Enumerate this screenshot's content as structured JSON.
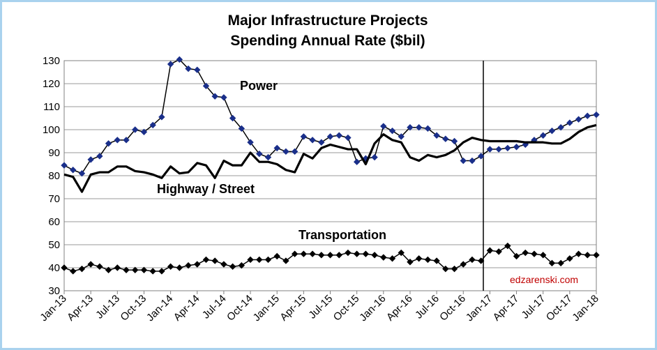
{
  "chart_data": {
    "type": "line",
    "title": "Major Infrastructure Projects",
    "subtitle": "Spending Annual Rate ($bil)",
    "categories": [
      "Jan-13",
      null,
      null,
      "Apr-13",
      null,
      null,
      "Jul-13",
      null,
      null,
      "Oct-13",
      null,
      null,
      "Jan-14",
      null,
      null,
      "Apr-14",
      null,
      null,
      "Jul-14",
      null,
      null,
      "Oct-14",
      null,
      null,
      "Jan-15",
      null,
      null,
      "Apr-15",
      null,
      null,
      "Jul-15",
      null,
      null,
      "Oct-15",
      null,
      null,
      "Jan-16",
      null,
      null,
      "Apr-16",
      null,
      null,
      "Jul-16",
      null,
      null,
      "Oct-16",
      null,
      null,
      "Jan-17",
      null,
      null,
      "Apr-17",
      null,
      null,
      "Jul-17",
      null,
      null,
      "Oct-17",
      null,
      null,
      "Jan-18"
    ],
    "series": [
      {
        "name": "Power",
        "color": "#1a2f8a",
        "line_color": "#000000",
        "line_width": 1.5,
        "marker": "diamond",
        "values": [
          84.5,
          82.5,
          81,
          87,
          88.5,
          94,
          95.5,
          95.5,
          100,
          99,
          102,
          105.5,
          128.5,
          130.5,
          126.5,
          126,
          119,
          114.5,
          114,
          105,
          100.5,
          94.5,
          89.5,
          88,
          92,
          90.5,
          90.5,
          97,
          95.5,
          94.5,
          97,
          97.5,
          96.5,
          86,
          87.5,
          88,
          101.5,
          99.5,
          97,
          101,
          101,
          100.5,
          97.5,
          96,
          95,
          86.5,
          86.5,
          88.5,
          91.5,
          91.5,
          92,
          92.5,
          93.5,
          95.5,
          97.5,
          99.5,
          101,
          103,
          104.5,
          106,
          106.5
        ]
      },
      {
        "name": "Highway / Street",
        "color": "#000000",
        "line_color": "#000000",
        "line_width": 3.2,
        "marker": null,
        "values": [
          80.5,
          79.5,
          73,
          80.5,
          81.5,
          81.5,
          84,
          84,
          82,
          81.5,
          80.5,
          79,
          84,
          81,
          81.5,
          85.5,
          84.5,
          79,
          86.5,
          84.5,
          84.5,
          90,
          86,
          86,
          85,
          82.5,
          81.5,
          89.5,
          87.5,
          92,
          93.5,
          92.5,
          91.5,
          91.5,
          85,
          94,
          98,
          95.5,
          94.5,
          88,
          86.5,
          89,
          88,
          89,
          91,
          94.5,
          96.5,
          95.5,
          95,
          95,
          95,
          95,
          94.5,
          94.5,
          94.5,
          94,
          94,
          96,
          99,
          101,
          102
        ]
      },
      {
        "name": "Transportation",
        "color": "#000000",
        "line_color": "#000000",
        "line_width": 1.5,
        "marker": "diamond",
        "values": [
          40,
          38.5,
          39.5,
          41.5,
          40.5,
          39,
          40,
          39,
          39,
          39,
          38.5,
          38.5,
          40.5,
          40,
          41,
          41.5,
          43.5,
          43,
          41.5,
          40.5,
          41,
          43.5,
          43.5,
          43.5,
          45,
          43,
          46,
          46,
          46,
          45.5,
          45.5,
          45.5,
          46.5,
          46,
          46,
          45.5,
          44.5,
          44,
          46.5,
          42.5,
          44,
          43.5,
          43,
          39.5,
          39.5,
          41.5,
          43.5,
          43,
          47.5,
          47,
          49.5,
          45,
          46.5,
          46,
          45.5,
          42,
          42,
          44,
          46,
          45.5,
          45.5
        ]
      }
    ],
    "annotations": [
      "Power",
      "Highway / Street",
      "Transportation",
      "edzarenski.com"
    ],
    "ylim": [
      30,
      130
    ],
    "yticks": [
      30,
      40,
      50,
      60,
      70,
      80,
      90,
      100,
      110,
      120,
      130
    ],
    "grid": true
  }
}
